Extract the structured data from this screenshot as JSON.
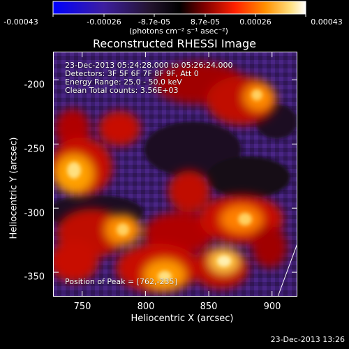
{
  "colors": {
    "background": "#000000",
    "text": "#ffffff",
    "colormap": [
      "#0000ff",
      "#40208a",
      "#2a1a3a",
      "#000000",
      "#4a0000",
      "#c00000",
      "#ff4000",
      "#ff9a00",
      "#ffe060",
      "#ffffff"
    ]
  },
  "colorbar": {
    "ticks": [
      "-0.00043",
      "-0.00026",
      "-8.7e-05",
      "8.7e-05",
      "0.00026",
      "0.00043"
    ],
    "unit_label": "(photons cm⁻² s⁻¹ asec⁻²)",
    "min": -0.00043,
    "max": 0.00043
  },
  "chart_data": {
    "type": "heatmap",
    "title": "Reconstructed RHESSI Image",
    "xlabel": "Heliocentric X (arcsec)",
    "ylabel": "Heliocentric Y (arcsec)",
    "xlim": [
      727,
      920
    ],
    "ylim": [
      -369,
      -178
    ],
    "x_ticks": [
      "750",
      "800",
      "850",
      "900"
    ],
    "x_tick_values": [
      750,
      800,
      850,
      900
    ],
    "y_ticks": [
      "-200",
      "-250",
      "-300",
      "-350"
    ],
    "y_tick_values": [
      -200,
      -250,
      -300,
      -350
    ],
    "annotations": [
      "23-Dec-2013 05:24:28.000 to 05:26:24.000",
      "Detectors: 3F 5F 6F 7F 8F 9F, Att 0",
      "Energy Range: 25.0 - 50.0 keV",
      "Clean    Total counts: 3.56E+03"
    ],
    "peak_label": "Position of Peak = [762,-235]",
    "peak_position": [
      762,
      -235
    ],
    "timestamp": "23-Dec-2013 13:26"
  }
}
